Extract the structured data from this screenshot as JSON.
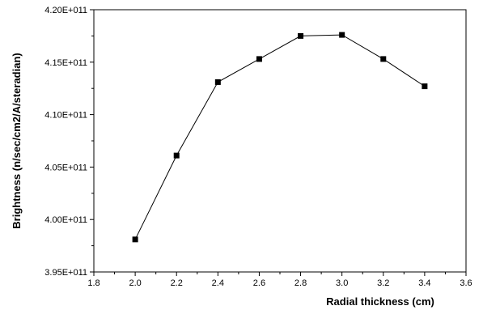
{
  "chart_data": {
    "type": "line",
    "title": "",
    "xlabel": "Radial thickness (cm)",
    "ylabel": "Brightness (n/sec/cm2/A/steradian)",
    "xlim": [
      1.8,
      3.6
    ],
    "ylim": [
      395000000000.0,
      420000000000.0
    ],
    "x_ticks": [
      1.8,
      2.0,
      2.2,
      2.4,
      2.6,
      2.8,
      3.0,
      3.2,
      3.4,
      3.6
    ],
    "x_tick_labels": [
      "1.8",
      "2.0",
      "2.2",
      "2.4",
      "2.6",
      "2.8",
      "3.0",
      "3.2",
      "3.4",
      "3.6"
    ],
    "y_ticks": [
      395000000000.0,
      400000000000.0,
      405000000000.0,
      410000000000.0,
      415000000000.0,
      420000000000.0
    ],
    "y_tick_labels": [
      "3.95E+011",
      "4.00E+011",
      "4.05E+011",
      "4.10E+011",
      "4.15E+011",
      "4.20E+011"
    ],
    "grid": false,
    "marker": "square",
    "series": [
      {
        "x": [
          2.0,
          2.2,
          2.4,
          2.6,
          2.8,
          3.0,
          3.2,
          3.4
        ],
        "y": [
          398100000000.0,
          406100000000.0,
          413100000000.0,
          415300000000.0,
          417500000000.0,
          417600000000.0,
          415300000000.0,
          412700000000.0
        ]
      }
    ],
    "colors": {
      "line": "#000000",
      "marker": "#000000",
      "axes": "#000000"
    }
  }
}
